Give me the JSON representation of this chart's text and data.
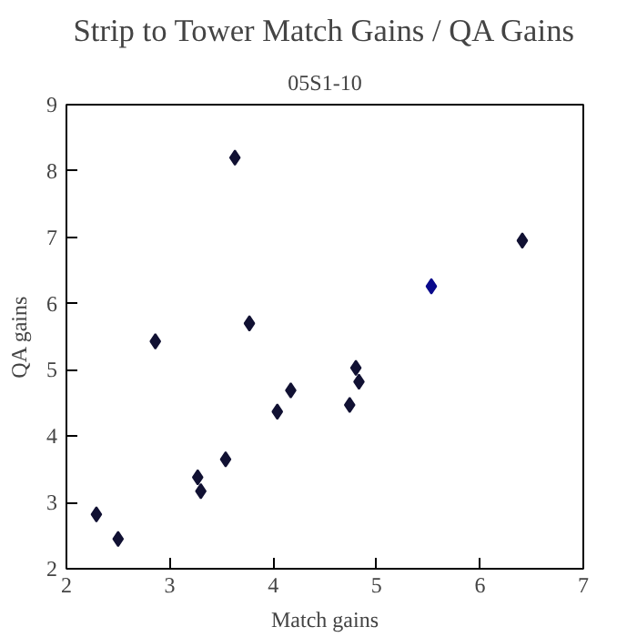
{
  "chart_data": {
    "type": "scatter",
    "title": "Strip to Tower Match Gains / QA Gains",
    "subtitle": "05S1-10",
    "xlabel": "Match gains",
    "ylabel": "QA gains",
    "x": [
      2.29,
      2.5,
      2.86,
      3.27,
      3.3,
      3.54,
      3.63,
      3.77,
      4.04,
      4.17,
      4.74,
      4.8,
      4.83,
      5.53,
      6.41
    ],
    "values": [
      2.82,
      2.45,
      5.43,
      3.38,
      3.17,
      3.65,
      8.2,
      5.7,
      4.37,
      4.69,
      4.47,
      5.03,
      4.82,
      6.26,
      6.95
    ],
    "colors": [
      "#111133",
      "#111133",
      "#111133",
      "#111133",
      "#111133",
      "#111133",
      "#111133",
      "#111133",
      "#111133",
      "#111133",
      "#111133",
      "#111133",
      "#111133",
      "#0a0a8c",
      "#111133"
    ],
    "marker": "diamond",
    "xlim": [
      2,
      7
    ],
    "ylim": [
      2,
      9
    ],
    "xticks": [
      2,
      3,
      4,
      5,
      6,
      7
    ],
    "yticks": [
      2,
      3,
      4,
      5,
      6,
      7,
      8,
      9
    ],
    "grid": false
  }
}
